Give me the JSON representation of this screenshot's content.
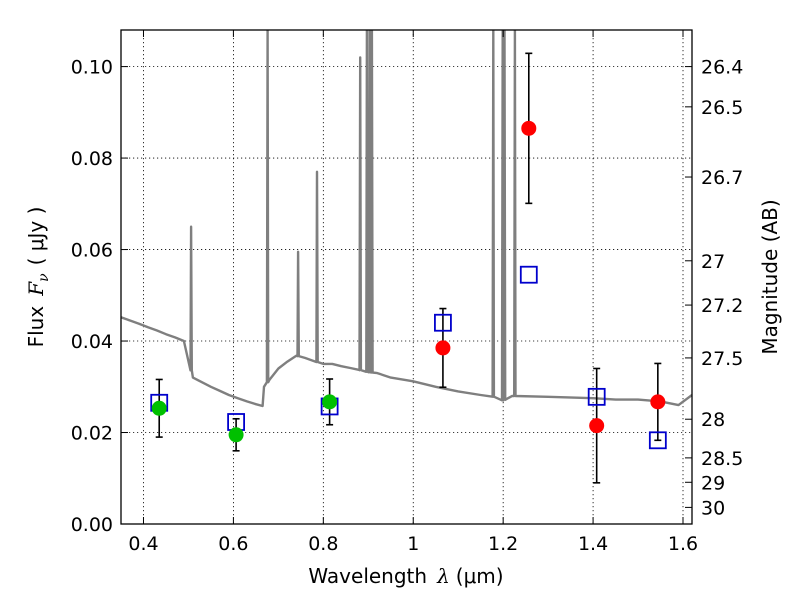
{
  "chart_data": {
    "type": "scatter",
    "xlabel": "Wavelength",
    "xlabel_symbol": "λ",
    "xlabel_unit": "(μm)",
    "ylabel": "Flux",
    "ylabel_symbol": "F",
    "ylabel_subscript": "ν",
    "ylabel_unit": "( μJy )",
    "right_label": "Magnitude (AB)",
    "xlim": [
      0.35,
      1.62
    ],
    "ylim": [
      0.0,
      0.108
    ],
    "grid": true,
    "grid_style": "dotted",
    "x_ticks": [
      0.4,
      0.6,
      0.8,
      1.0,
      1.2,
      1.4,
      1.6
    ],
    "x_tick_labels": [
      "0.4",
      "0.6",
      "0.8",
      "1",
      "1.2",
      "1.4",
      "1.6"
    ],
    "y_ticks": [
      0.0,
      0.02,
      0.04,
      0.06,
      0.08,
      0.1
    ],
    "y_tick_labels": [
      "0.00",
      "0.02",
      "0.04",
      "0.06",
      "0.08",
      "0.10"
    ],
    "mag_ticks": [
      26.4,
      26.5,
      26.7,
      27,
      27.2,
      27.5,
      28,
      28.5,
      29,
      30
    ],
    "mag_tick_labels": [
      "26.4",
      "26.5",
      "26.7",
      "27",
      "27.2",
      "27.5",
      "28",
      "28.5",
      "29",
      "30"
    ],
    "colors": {
      "sed": "#7f7f7f",
      "green": "#00c000",
      "red": "#ff0000",
      "model_box": "#0000cc",
      "errorbar": "#000000"
    },
    "series": [
      {
        "marker": "circle",
        "color": "#00c000",
        "points": [
          {
            "x": 0.435,
            "y": 0.0253,
            "yerr_low": 0.0063,
            "yerr_high": 0.0063
          },
          {
            "x": 0.606,
            "y": 0.0195,
            "yerr_low": 0.0035,
            "yerr_high": 0.0035
          },
          {
            "x": 0.814,
            "y": 0.0267,
            "yerr_low": 0.005,
            "yerr_high": 0.005
          }
        ]
      },
      {
        "marker": "circle",
        "color": "#ff0000",
        "points": [
          {
            "x": 1.066,
            "y": 0.0385,
            "yerr_low": 0.0086,
            "yerr_high": 0.0086
          },
          {
            "x": 1.257,
            "y": 0.0865,
            "yerr_low": 0.0164,
            "yerr_high": 0.0164
          },
          {
            "x": 1.408,
            "y": 0.0215,
            "yerr_low": 0.0125,
            "yerr_high": 0.0125
          },
          {
            "x": 1.544,
            "y": 0.0267,
            "yerr_low": 0.0084,
            "yerr_high": 0.0084
          }
        ]
      },
      {
        "marker": "open-square",
        "color": "#0000cc",
        "points": [
          {
            "x": 0.435,
            "y": 0.0265
          },
          {
            "x": 0.606,
            "y": 0.0223
          },
          {
            "x": 0.814,
            "y": 0.0257
          },
          {
            "x": 1.066,
            "y": 0.044
          },
          {
            "x": 1.257,
            "y": 0.0545
          },
          {
            "x": 1.408,
            "y": 0.0278
          },
          {
            "x": 1.544,
            "y": 0.0183
          }
        ]
      },
      {
        "marker": "line",
        "color": "#7f7f7f",
        "continuum": [
          [
            0.35,
            0.0452
          ],
          [
            0.37,
            0.0445
          ],
          [
            0.39,
            0.0438
          ],
          [
            0.41,
            0.043
          ],
          [
            0.43,
            0.0423
          ],
          [
            0.45,
            0.0415
          ],
          [
            0.47,
            0.0408
          ],
          [
            0.49,
            0.04
          ],
          [
            0.51,
            0.032
          ],
          [
            0.53,
            0.031
          ],
          [
            0.55,
            0.03
          ],
          [
            0.57,
            0.0291
          ],
          [
            0.59,
            0.0282
          ],
          [
            0.61,
            0.0275
          ],
          [
            0.63,
            0.0268
          ],
          [
            0.65,
            0.0262
          ],
          [
            0.665,
            0.0258
          ],
          [
            0.668,
            0.03
          ],
          [
            0.68,
            0.0315
          ],
          [
            0.7,
            0.034
          ],
          [
            0.72,
            0.0355
          ],
          [
            0.74,
            0.0368
          ],
          [
            0.76,
            0.0363
          ],
          [
            0.78,
            0.0356
          ],
          [
            0.8,
            0.035
          ],
          [
            0.82,
            0.035
          ],
          [
            0.84,
            0.0345
          ],
          [
            0.86,
            0.0341
          ],
          [
            0.88,
            0.0337
          ],
          [
            0.9,
            0.0332
          ],
          [
            0.92,
            0.033
          ],
          [
            0.95,
            0.032
          ],
          [
            1.0,
            0.0312
          ],
          [
            1.05,
            0.03
          ],
          [
            1.1,
            0.029
          ],
          [
            1.15,
            0.0282
          ],
          [
            1.18,
            0.0278
          ],
          [
            1.2,
            0.027
          ],
          [
            1.22,
            0.028
          ],
          [
            1.3,
            0.0278
          ],
          [
            1.4,
            0.0275
          ],
          [
            1.45,
            0.0272
          ],
          [
            1.5,
            0.0272
          ],
          [
            1.55,
            0.0268
          ],
          [
            1.59,
            0.026
          ],
          [
            1.62,
            0.0282
          ]
        ],
        "emission_lines": [
          {
            "x": 0.506,
            "peak": 0.065
          },
          {
            "x": 0.676,
            "peak": 0.108
          },
          {
            "x": 0.744,
            "peak": 0.0595
          },
          {
            "x": 0.786,
            "peak": 0.077
          },
          {
            "x": 0.882,
            "peak": 0.102
          },
          {
            "x": 0.897,
            "peak": 0.108
          },
          {
            "x": 0.903,
            "peak": 0.108
          },
          {
            "x": 0.908,
            "peak": 0.108
          },
          {
            "x": 1.178,
            "peak": 0.108
          },
          {
            "x": 1.199,
            "peak": 0.108
          },
          {
            "x": 1.203,
            "peak": 0.108
          },
          {
            "x": 1.226,
            "peak": 0.108
          }
        ]
      }
    ]
  }
}
